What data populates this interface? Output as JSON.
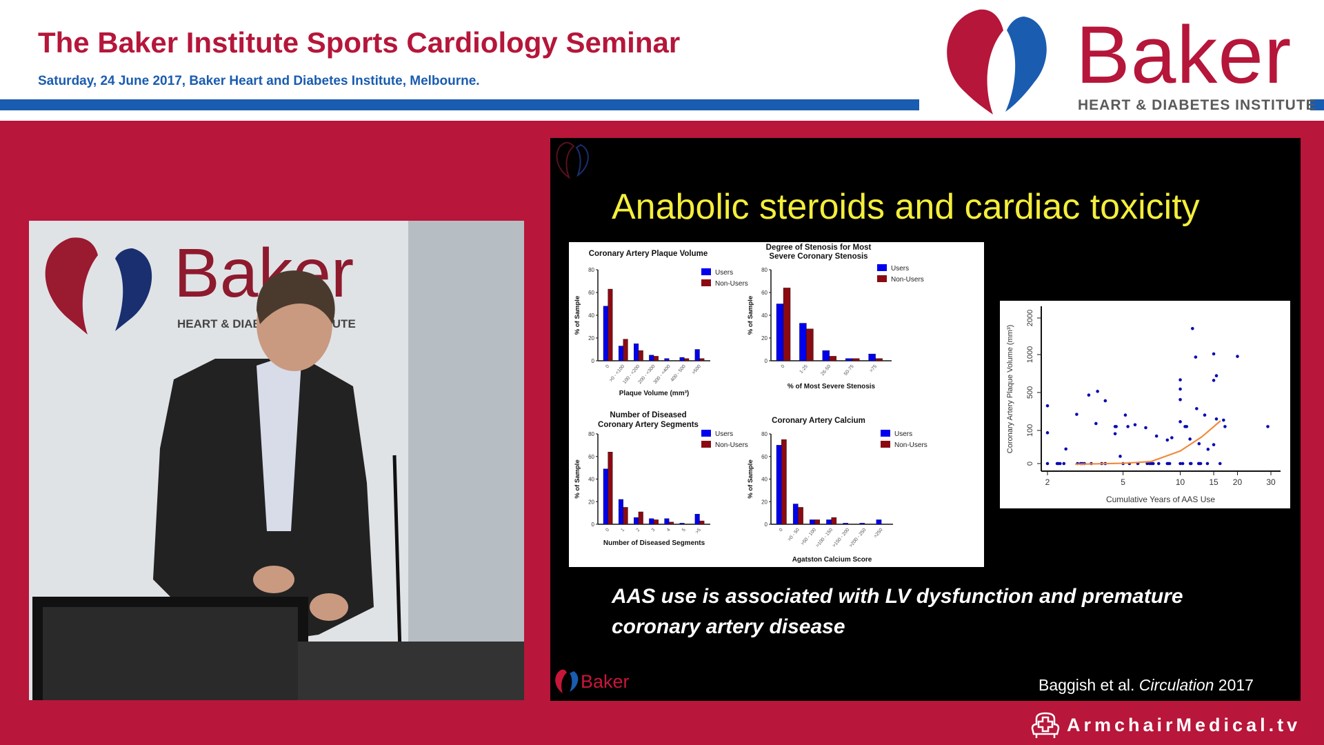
{
  "header": {
    "title": "The Baker Institute Sports Cardiology Seminar",
    "subtitle": "Saturday, 24 June 2017, Baker Heart and Diabetes Institute, Melbourne.",
    "logo_word": "Baker",
    "logo_sub": "HEART & DIABETES INSTITUTE"
  },
  "colors": {
    "brand_red": "#b8163a",
    "brand_blue": "#1a5cb0",
    "slide_title": "#f4ee3a",
    "users": "#0000ee",
    "non_users": "#8b0a12",
    "scatter_points": "#0a0ab0",
    "trend": "#f08a3c"
  },
  "video": {
    "banner_word": "Baker",
    "banner_sub": "HEART & DIABETES INSTITUTE"
  },
  "slide": {
    "title": "Anabolic steroids and cardiac toxicity",
    "caption_line1": "AAS use is associated with LV dysfunction and premature",
    "caption_line2": "coronary artery disease",
    "citation_authors": "Baggish et al. ",
    "citation_journal": "Circulation",
    "citation_year": " 2017",
    "footer_logo": "Baker"
  },
  "watermark": {
    "text": "ArmchairMedical.tv",
    "icon": "armchair-cross-icon"
  },
  "chart_data": [
    {
      "type": "bar",
      "title": "Coronary Artery Plaque Volume",
      "xlabel": "Plaque Volume (mm³)",
      "ylabel": "% of Sample",
      "ylim": [
        0,
        80
      ],
      "yticks": [
        0,
        20,
        40,
        60,
        80
      ],
      "categories": [
        "0",
        ">0 - <100",
        "100 - <200",
        "200 - <300",
        "300 - <400",
        "400 - 500",
        ">500"
      ],
      "series": [
        {
          "name": "Users",
          "values": [
            48,
            13,
            15,
            5,
            2,
            3,
            10
          ]
        },
        {
          "name": "Non-Users",
          "values": [
            63,
            19,
            9,
            4,
            0,
            2,
            2
          ]
        }
      ],
      "legend": "top-right"
    },
    {
      "type": "bar",
      "title": "Degree of Stenosis for Most|Severe Coronary Stenosis",
      "xlabel": "% of Most Severe Stenosis",
      "ylabel": "% of Sample",
      "ylim": [
        0,
        80
      ],
      "yticks": [
        0,
        20,
        40,
        60,
        80
      ],
      "categories": [
        "0",
        "1-25",
        "26-50",
        "50-75",
        ">75"
      ],
      "series": [
        {
          "name": "Users",
          "values": [
            50,
            33,
            9,
            2,
            6
          ]
        },
        {
          "name": "Non-Users",
          "values": [
            64,
            28,
            4,
            2,
            2
          ]
        }
      ],
      "legend": "top-right"
    },
    {
      "type": "bar",
      "title": "Number of Diseased|Coronary Artery Segments",
      "xlabel": "Number of Diseased Segments",
      "ylabel": "% of Sample",
      "ylim": [
        0,
        80
      ],
      "yticks": [
        0,
        20,
        40,
        60,
        80
      ],
      "categories": [
        "0",
        "1",
        "2",
        "3",
        "4",
        "5",
        ">5"
      ],
      "series": [
        {
          "name": "Users",
          "values": [
            49,
            22,
            6,
            5,
            5,
            1,
            9
          ]
        },
        {
          "name": "Non-Users",
          "values": [
            64,
            15,
            11,
            4,
            2,
            0,
            3
          ]
        }
      ],
      "legend": "top-right"
    },
    {
      "type": "bar",
      "title": "Coronary Artery Calcium",
      "xlabel": "Agatston Calcium Score",
      "ylabel": "% of Sample",
      "ylim": [
        0,
        80
      ],
      "yticks": [
        0,
        20,
        40,
        60,
        80
      ],
      "categories": [
        "0",
        ">0 - 50",
        ">50 - 100",
        ">100 - 150",
        ">150 - 200",
        ">200 - 250",
        ">250"
      ],
      "series": [
        {
          "name": "Users",
          "values": [
            70,
            18,
            4,
            4,
            1,
            1,
            4
          ]
        },
        {
          "name": "Non-Users",
          "values": [
            75,
            15,
            4,
            6,
            0,
            0,
            0
          ]
        }
      ],
      "legend": "top-right"
    },
    {
      "type": "scatter",
      "xlabel": "Cumulative Years of AAS Use",
      "ylabel": "Coronary Artery Plaque Volume (mm³)",
      "x_scale": "log",
      "xlim": [
        2,
        30
      ],
      "xticks": [
        2,
        5,
        10,
        15,
        20,
        30
      ],
      "ylim": [
        0,
        2000
      ],
      "yticks": [
        0,
        100,
        500,
        1000,
        2000
      ],
      "points": [
        [
          2,
          360
        ],
        [
          2,
          93
        ],
        [
          2.5,
          44
        ],
        [
          2.85,
          270
        ],
        [
          3.3,
          473
        ],
        [
          3.67,
          515
        ],
        [
          3.6,
          173
        ],
        [
          4.03,
          413
        ],
        [
          4.54,
          141
        ],
        [
          4.6,
          141
        ],
        [
          4.54,
          90
        ],
        [
          4.83,
          22
        ],
        [
          5.14,
          262
        ],
        [
          5.3,
          141
        ],
        [
          5.78,
          160
        ],
        [
          6.58,
          129
        ],
        [
          7.5,
          83
        ],
        [
          8.55,
          71
        ],
        [
          9.03,
          78
        ],
        [
          10,
          667
        ],
        [
          10,
          545
        ],
        [
          10,
          425
        ],
        [
          10,
          192
        ],
        [
          10.6,
          141
        ],
        [
          10.8,
          141
        ],
        [
          11.25,
          74
        ],
        [
          11.6,
          1712
        ],
        [
          12.05,
          967
        ],
        [
          12.2,
          330
        ],
        [
          12.56,
          60
        ],
        [
          13.45,
          262
        ],
        [
          14,
          43
        ],
        [
          15,
          1019
        ],
        [
          15,
          660
        ],
        [
          15,
          57
        ],
        [
          15.5,
          721
        ],
        [
          15.5,
          221
        ],
        [
          16.9,
          209
        ],
        [
          17.2,
          141
        ],
        [
          20,
          976
        ],
        [
          28.9,
          141
        ],
        [
          2,
          0
        ],
        [
          2.25,
          0
        ],
        [
          2.28,
          0
        ],
        [
          2.33,
          0
        ],
        [
          2.44,
          0
        ],
        [
          2.88,
          0
        ],
        [
          2.99,
          0
        ],
        [
          3.05,
          0
        ],
        [
          3.13,
          0
        ],
        [
          3.4,
          0
        ],
        [
          3.86,
          0
        ],
        [
          4.03,
          0
        ],
        [
          5,
          0
        ],
        [
          5.4,
          0
        ],
        [
          5.98,
          0
        ],
        [
          6.7,
          0
        ],
        [
          6.9,
          0
        ],
        [
          7.06,
          0
        ],
        [
          7.2,
          0
        ],
        [
          7.7,
          0
        ],
        [
          8.55,
          0
        ],
        [
          8.67,
          0
        ],
        [
          8.79,
          0
        ],
        [
          10,
          0
        ],
        [
          10.3,
          0
        ],
        [
          11.3,
          0
        ],
        [
          11.4,
          0
        ],
        [
          12.5,
          0
        ],
        [
          12.6,
          0
        ],
        [
          12.8,
          0
        ],
        [
          13.9,
          0
        ],
        [
          16.2,
          0
        ]
      ],
      "trend": [
        [
          2.8,
          0
        ],
        [
          5,
          3
        ],
        [
          7,
          8
        ],
        [
          10,
          40
        ],
        [
          13,
          83
        ],
        [
          16.3,
          209
        ]
      ]
    }
  ]
}
